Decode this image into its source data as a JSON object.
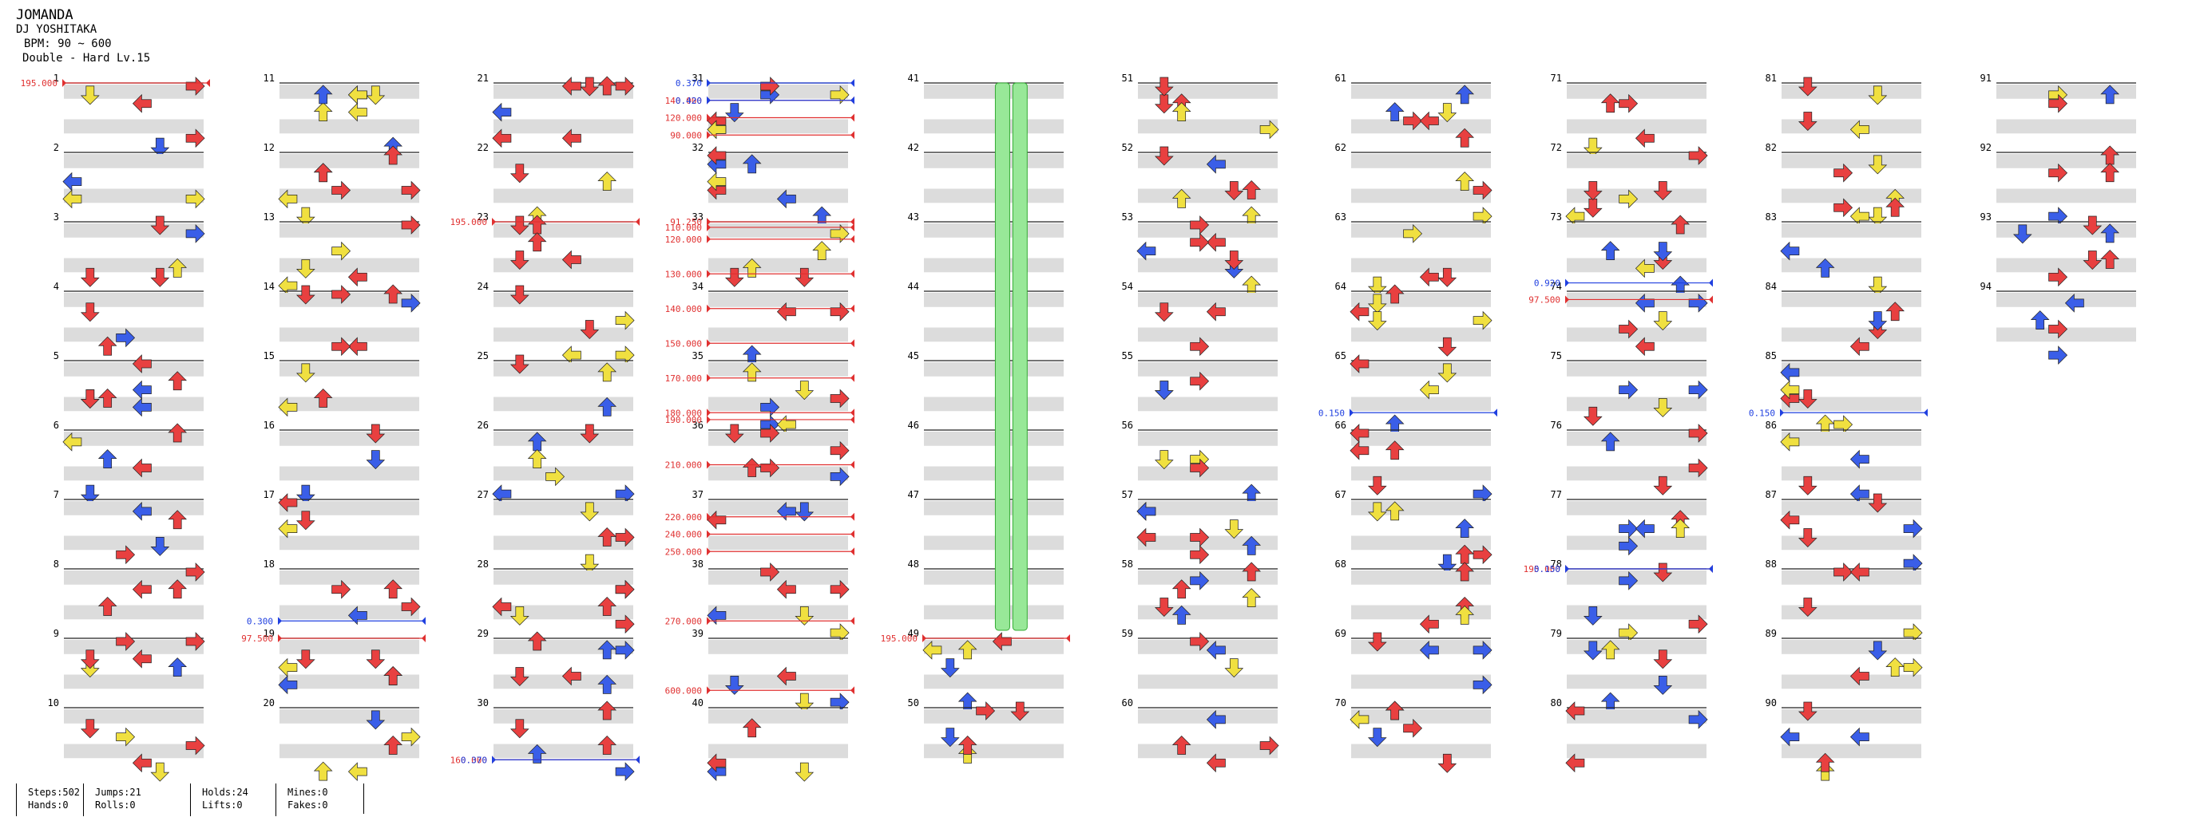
{
  "song": {
    "title": "JOMANDA",
    "artist": "DJ YOSHITAKA",
    "bpm": "BPM: 90 ~ 600",
    "difficulty": "Double - Hard Lv.15"
  },
  "stats": {
    "steps": "Steps:502",
    "hands": "Hands:0",
    "jumps": "Jumps:21",
    "rolls": "Rolls:0",
    "holds": "Holds:24",
    "lifts": "Lifts:0",
    "mines": "Mines:0",
    "fakes": "Fakes:0"
  },
  "columns": [
    {
      "measures": [
        "1",
        "2",
        "3",
        "4",
        "5",
        "6",
        "7",
        "8",
        "9",
        "10"
      ],
      "markers": [
        {
          "m": 0,
          "f": 0,
          "text": "195.000",
          "color": "#e03030"
        }
      ]
    },
    {
      "measures": [
        "11",
        "12",
        "13",
        "14",
        "15",
        "16",
        "17",
        "18",
        "19",
        "20"
      ],
      "markers": [
        {
          "m": 7,
          "f": 0.75,
          "text": "0.300",
          "color": "#2040e0"
        },
        {
          "m": 8,
          "f": 0,
          "text": "97.500",
          "color": "#e03030"
        }
      ]
    },
    {
      "measures": [
        "21",
        "22",
        "23",
        "24",
        "25",
        "26",
        "27",
        "28",
        "29",
        "30"
      ],
      "markers": [
        {
          "m": 2,
          "f": 0,
          "text": "195.000",
          "color": "#e03030"
        },
        {
          "m": 9,
          "f": 0.75,
          "text": "160.000",
          "color": "#e03030"
        },
        {
          "m": 9,
          "f": 0.75,
          "text": "0.370",
          "color": "#2040e0"
        }
      ]
    },
    {
      "measures": [
        "31",
        "32",
        "33",
        "34",
        "35",
        "36",
        "37",
        "38",
        "39",
        "40"
      ],
      "markers": [
        {
          "m": 0,
          "f": 0,
          "text": "0.370",
          "color": "#2040e0"
        },
        {
          "m": 0,
          "f": 0.25,
          "text": "140.000",
          "color": "#e03030"
        },
        {
          "m": 0,
          "f": 0.25,
          "text": "0.420",
          "color": "#2040e0"
        },
        {
          "m": 0,
          "f": 0.5,
          "text": "120.000",
          "color": "#e03030"
        },
        {
          "m": 0,
          "f": 0.75,
          "text": "90.000",
          "color": "#e03030"
        },
        {
          "m": 2,
          "f": 0,
          "text": "91.250",
          "color": "#e03030"
        },
        {
          "m": 2,
          "f": 0.08,
          "text": "110.000",
          "color": "#e03030"
        },
        {
          "m": 2,
          "f": 0.25,
          "text": "120.000",
          "color": "#e03030"
        },
        {
          "m": 2,
          "f": 0.75,
          "text": "130.000",
          "color": "#e03030"
        },
        {
          "m": 3,
          "f": 0.25,
          "text": "140.000",
          "color": "#e03030"
        },
        {
          "m": 3,
          "f": 0.75,
          "text": "150.000",
          "color": "#e03030"
        },
        {
          "m": 4,
          "f": 0.25,
          "text": "170.000",
          "color": "#e03030"
        },
        {
          "m": 4,
          "f": 0.75,
          "text": "180.000",
          "color": "#e03030"
        },
        {
          "m": 4,
          "f": 0.85,
          "text": "190.000",
          "color": "#e03030"
        },
        {
          "m": 5,
          "f": 0.5,
          "text": "210.000",
          "color": "#e03030"
        },
        {
          "m": 6,
          "f": 0.25,
          "text": "220.000",
          "color": "#e03030"
        },
        {
          "m": 6,
          "f": 0.5,
          "text": "240.000",
          "color": "#e03030"
        },
        {
          "m": 6,
          "f": 0.75,
          "text": "250.000",
          "color": "#e03030"
        },
        {
          "m": 7,
          "f": 0.75,
          "text": "270.000",
          "color": "#e03030"
        },
        {
          "m": 8,
          "f": 0.75,
          "text": "600.000",
          "color": "#e03030"
        }
      ]
    },
    {
      "measures": [
        "41",
        "42",
        "43",
        "44",
        "45",
        "46",
        "47",
        "48",
        "49",
        "50"
      ],
      "markers": [
        {
          "m": 8,
          "f": 0,
          "text": "195.000",
          "color": "#e03030"
        }
      ]
    },
    {
      "measures": [
        "51",
        "52",
        "53",
        "54",
        "55",
        "56",
        "57",
        "58",
        "59",
        "60"
      ],
      "markers": []
    },
    {
      "measures": [
        "61",
        "62",
        "63",
        "64",
        "65",
        "66",
        "67",
        "68",
        "69",
        "70"
      ],
      "markers": [
        {
          "m": 4,
          "f": 0.75,
          "text": "0.150",
          "color": "#2040e0"
        }
      ]
    },
    {
      "measures": [
        "71",
        "72",
        "73",
        "74",
        "75",
        "76",
        "77",
        "78",
        "79",
        "80"
      ],
      "markers": [
        {
          "m": 2,
          "f": 0.88,
          "text": "0.920",
          "color": "#2040e0"
        },
        {
          "m": 3,
          "f": 0.12,
          "text": "97.500",
          "color": "#e03030"
        },
        {
          "m": 7,
          "f": 0,
          "text": "195.000",
          "color": "#e03030"
        },
        {
          "m": 7,
          "f": 0,
          "text": "0.150",
          "color": "#2040e0"
        }
      ]
    },
    {
      "measures": [
        "81",
        "82",
        "83",
        "84",
        "85",
        "86",
        "87",
        "88",
        "89",
        "90"
      ],
      "markers": [
        {
          "m": 4,
          "f": 0.75,
          "text": "0.150",
          "color": "#2040e0"
        }
      ]
    },
    {
      "measures": [
        "91",
        "92",
        "93",
        "94"
      ],
      "markers": []
    }
  ],
  "colors": {
    "quarter": "#e84040",
    "eighth": "#3a5ee8",
    "sixteenth": "#f0e040",
    "other": "#f09040",
    "hold": "#98e898",
    "stripe": "#dcdcdc",
    "speed": "#e03030",
    "scroll": "#2040e0"
  }
}
